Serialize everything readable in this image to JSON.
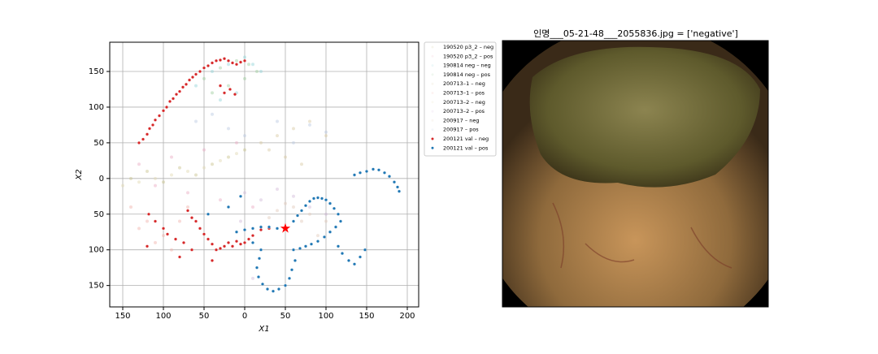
{
  "chart_data": {
    "type": "scatter",
    "xlabel": "X1",
    "ylabel": "X2",
    "grid": true,
    "legend": "outside-right",
    "xlim": [
      -166,
      214
    ],
    "ylim": [
      -180,
      191
    ],
    "xticks": [
      {
        "value": -150,
        "label": "150"
      },
      {
        "value": -100,
        "label": "100"
      },
      {
        "value": -50,
        "label": "50"
      },
      0,
      50,
      100,
      150,
      200
    ],
    "yticks": [
      {
        "value": -150,
        "label": "150"
      },
      {
        "value": -100,
        "label": "100"
      },
      {
        "value": -50,
        "label": "50"
      },
      0,
      50,
      100,
      150
    ],
    "series": [
      {
        "name": "190520 p3_2 – neg",
        "color": "#c8c08a",
        "faint": true,
        "x": [
          -140,
          -120,
          -100,
          -80,
          -60,
          -40,
          -20,
          0
        ],
        "values": [
          0,
          10,
          -5,
          15,
          5,
          20,
          30,
          40
        ]
      },
      {
        "name": "190520 p3_2 – pos",
        "color": "#e8a8c0",
        "faint": true,
        "x": [
          -130,
          -110,
          -90,
          -70,
          -50,
          -30,
          -10,
          10
        ],
        "values": [
          20,
          -10,
          30,
          -20,
          40,
          -30,
          50,
          -40
        ]
      },
      {
        "name": "190814 neg – neg",
        "color": "#8fd3d8",
        "faint": true,
        "x": [
          -60,
          -40,
          -20,
          0,
          10,
          20,
          -10,
          -30
        ],
        "values": [
          130,
          150,
          160,
          170,
          160,
          150,
          120,
          110
        ]
      },
      {
        "name": "190814 neg – pos",
        "color": "#9ccc9c",
        "faint": true,
        "x": [
          -50,
          -30,
          -10,
          5,
          15,
          -20,
          0,
          -40
        ],
        "values": [
          140,
          155,
          165,
          160,
          150,
          130,
          140,
          120
        ]
      },
      {
        "name": "200713–1 – neg",
        "color": "#d8c8a0",
        "faint": true,
        "x": [
          20,
          40,
          60,
          80,
          100,
          30,
          50,
          70
        ],
        "values": [
          50,
          60,
          70,
          80,
          60,
          40,
          30,
          20
        ]
      },
      {
        "name": "200713–1 – pos",
        "color": "#f0b0a8",
        "faint": true,
        "x": [
          -140,
          -120,
          -100,
          -90,
          -130,
          -110,
          -80,
          -70
        ],
        "values": [
          -40,
          -60,
          -80,
          -100,
          -70,
          -90,
          -60,
          -40
        ]
      },
      {
        "name": "200713–2 – neg",
        "color": "#e0d8b0",
        "faint": true,
        "x": [
          -150,
          -130,
          -110,
          -90,
          -70,
          -50,
          -30,
          -10
        ],
        "values": [
          -10,
          -5,
          0,
          5,
          10,
          15,
          25,
          35
        ]
      },
      {
        "name": "200713–2 – pos",
        "color": "#d0b8d8",
        "faint": true,
        "x": [
          0,
          20,
          40,
          60,
          80,
          100,
          -5,
          10
        ],
        "values": [
          -20,
          -30,
          -15,
          -25,
          -40,
          -50,
          -60,
          -140
        ]
      },
      {
        "name": "200917 – neg",
        "color": "#e0c8b8",
        "faint": true,
        "x": [
          60,
          80,
          100,
          90,
          70,
          50,
          40,
          30
        ],
        "values": [
          -40,
          -50,
          -60,
          -80,
          -60,
          -35,
          -45,
          -55
        ]
      },
      {
        "name": "200917 – pos",
        "color": "#b8c8e0",
        "faint": true,
        "x": [
          -60,
          -40,
          -20,
          0,
          40,
          60,
          80,
          100
        ],
        "values": [
          80,
          90,
          70,
          60,
          80,
          50,
          75,
          65
        ]
      },
      {
        "name": "200121 val – neg",
        "color": "#d62728",
        "faint": false,
        "x": [
          -130,
          -125,
          -120,
          -117,
          -113,
          -110,
          -105,
          -100,
          -96,
          -92,
          -88,
          -84,
          -80,
          -76,
          -72,
          -68,
          -64,
          -60,
          -55,
          -50,
          -45,
          -40,
          -35,
          -30,
          -25,
          -20,
          -15,
          -10,
          -5,
          0,
          -30,
          -25,
          -18,
          -12,
          -118,
          -110,
          -100,
          -95,
          -85,
          -75,
          -65,
          -70,
          -65,
          -60,
          -55,
          -50,
          -45,
          -40,
          -35,
          -30,
          -25,
          -20,
          -15,
          -10,
          -5,
          0,
          5,
          10,
          20,
          30,
          -80,
          -120,
          -40
        ],
        "values": [
          50,
          55,
          62,
          70,
          75,
          82,
          88,
          95,
          100,
          108,
          112,
          118,
          122,
          128,
          132,
          138,
          142,
          146,
          150,
          155,
          158,
          162,
          165,
          166,
          168,
          165,
          162,
          160,
          163,
          165,
          130,
          120,
          125,
          118,
          -50,
          -60,
          -70,
          -78,
          -85,
          -90,
          -100,
          -45,
          -55,
          -60,
          -70,
          -78,
          -85,
          -92,
          -100,
          -98,
          -95,
          -90,
          -95,
          -88,
          -92,
          -90,
          -85,
          -80,
          -72,
          -70,
          -110,
          -95,
          -115
        ]
      },
      {
        "name": "200121 val – pos",
        "color": "#1f77b4",
        "faint": false,
        "x": [
          -10,
          0,
          10,
          20,
          30,
          40,
          50,
          60,
          65,
          70,
          75,
          80,
          85,
          90,
          95,
          100,
          105,
          110,
          115,
          118,
          112,
          105,
          98,
          90,
          82,
          75,
          68,
          60,
          20,
          18,
          15,
          17,
          22,
          28,
          35,
          42,
          50,
          55,
          58,
          62,
          135,
          142,
          150,
          158,
          165,
          172,
          178,
          184,
          188,
          190,
          115,
          120,
          128,
          135,
          142,
          148,
          -20,
          -5,
          -45,
          10
        ],
        "values": [
          -75,
          -72,
          -70,
          -68,
          -68,
          -70,
          -70,
          -60,
          -52,
          -45,
          -38,
          -32,
          -28,
          -27,
          -28,
          -30,
          -35,
          -42,
          -50,
          -60,
          -68,
          -75,
          -82,
          -88,
          -92,
          -95,
          -98,
          -100,
          -100,
          -112,
          -125,
          -138,
          -148,
          -155,
          -158,
          -155,
          -150,
          -140,
          -128,
          -115,
          5,
          8,
          10,
          13,
          12,
          8,
          3,
          -5,
          -12,
          -18,
          -95,
          -105,
          -115,
          -120,
          -110,
          -100,
          -40,
          -25,
          -50,
          -90
        ]
      }
    ],
    "highlight": {
      "x": 50,
      "y": -70,
      "color": "#ff0000"
    }
  },
  "image_panel": {
    "title": "인명___05-21-48___2055836.jpg = ['negative']"
  }
}
